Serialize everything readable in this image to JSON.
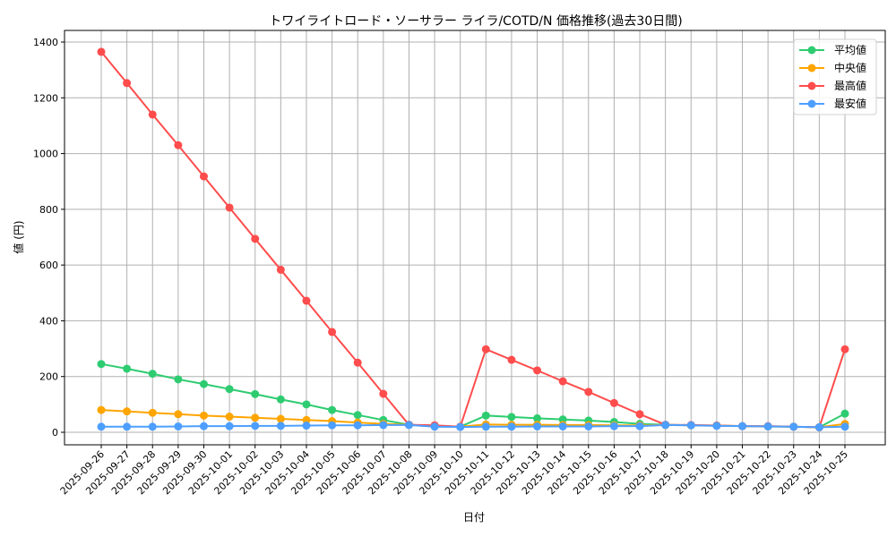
{
  "chart_data": {
    "type": "line",
    "title": "トワイライトロード・ソーサラー ライラ/COTD/N 価格推移(過去30日間)",
    "xlabel": "日付",
    "ylabel": "値 (円)",
    "ylim": [
      -45,
      1430
    ],
    "yticks": [
      0,
      200,
      400,
      600,
      800,
      1000,
      1200,
      1400
    ],
    "grid": true,
    "legend_position": "upper right",
    "categories": [
      "2025-09-26",
      "2025-09-27",
      "2025-09-28",
      "2025-09-29",
      "2025-09-30",
      "2025-10-01",
      "2025-10-02",
      "2025-10-03",
      "2025-10-04",
      "2025-10-05",
      "2025-10-06",
      "2025-10-07",
      "2025-10-08",
      "2025-10-09",
      "2025-10-10",
      "2025-10-11",
      "2025-10-12",
      "2025-10-13",
      "2025-10-14",
      "2025-10-15",
      "2025-10-16",
      "2025-10-17",
      "2025-10-18",
      "2025-10-19",
      "2025-10-20",
      "2025-10-21",
      "2025-10-22",
      "2025-10-23",
      "2025-10-24",
      "2025-10-25"
    ],
    "series": [
      {
        "name": "平均値",
        "color": "#2ecc71",
        "values": [
          245,
          228,
          210,
          190,
          173,
          155,
          137,
          118,
          100,
          80,
          62,
          44,
          27,
          22,
          20,
          60,
          55,
          50,
          46,
          42,
          37,
          30,
          27,
          25,
          24,
          22,
          21,
          20,
          18,
          67
        ]
      },
      {
        "name": "中央値",
        "color": "#ffa500",
        "values": [
          80,
          75,
          70,
          65,
          60,
          56,
          52,
          48,
          44,
          40,
          35,
          30,
          27,
          22,
          20,
          28,
          27,
          27,
          26,
          26,
          25,
          25,
          26,
          25,
          24,
          22,
          21,
          20,
          18,
          30
        ]
      },
      {
        "name": "最高値",
        "color": "#ff4c4c",
        "values": [
          1365,
          1253,
          1140,
          1030,
          918,
          806,
          694,
          583,
          472,
          360,
          250,
          138,
          27,
          25,
          20,
          298,
          260,
          222,
          183,
          145,
          105,
          65,
          27,
          26,
          24,
          22,
          22,
          20,
          18,
          298
        ]
      },
      {
        "name": "最安値",
        "color": "#4d9fff",
        "values": [
          20,
          20,
          20,
          21,
          22,
          22,
          23,
          23,
          24,
          25,
          25,
          26,
          26,
          20,
          19,
          20,
          20,
          21,
          21,
          21,
          22,
          22,
          26,
          25,
          23,
          22,
          21,
          20,
          18,
          20
        ]
      }
    ]
  }
}
